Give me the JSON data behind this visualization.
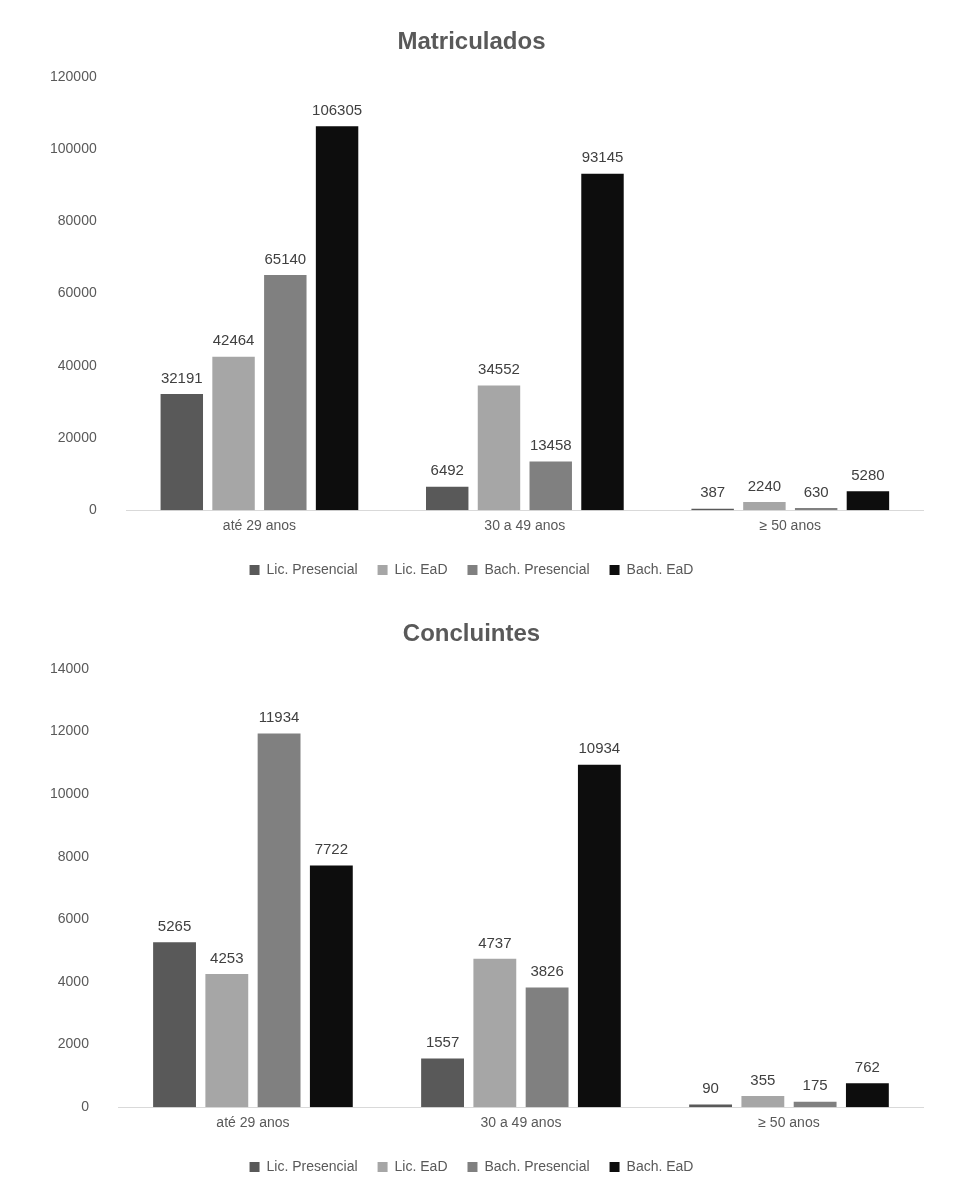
{
  "chart_data": [
    {
      "type": "bar",
      "title": "Matriculados",
      "categories": [
        "até 29 anos",
        "30 a 49 anos",
        "≥ 50 anos"
      ],
      "series": [
        {
          "name": "Lic. Presencial",
          "color": "#595959",
          "values": [
            32191,
            6492,
            387
          ]
        },
        {
          "name": "Lic. EaD",
          "color": "#a6a6a6",
          "values": [
            42464,
            34552,
            2240
          ]
        },
        {
          "name": "Bach. Presencial",
          "color": "#808080",
          "values": [
            65140,
            13458,
            630
          ]
        },
        {
          "name": "Bach. EaD",
          "color": "#0d0d0d",
          "values": [
            106305,
            93145,
            5280
          ]
        }
      ],
      "ylim": [
        0,
        120000
      ],
      "yticks": [
        0,
        20000,
        40000,
        60000,
        80000,
        100000,
        120000
      ],
      "grid": false,
      "legend": "bottom",
      "data_labels": true
    },
    {
      "type": "bar",
      "title": "Concluintes",
      "categories": [
        "até 29 anos",
        "30 a 49 anos",
        "≥ 50 anos"
      ],
      "series": [
        {
          "name": "Lic. Presencial",
          "color": "#595959",
          "values": [
            5265,
            1557,
            90
          ]
        },
        {
          "name": "Lic. EaD",
          "color": "#a6a6a6",
          "values": [
            4253,
            4737,
            355
          ]
        },
        {
          "name": "Bach. Presencial",
          "color": "#808080",
          "values": [
            11934,
            3826,
            175
          ]
        },
        {
          "name": "Bach. EaD",
          "color": "#0d0d0d",
          "values": [
            7722,
            10934,
            762
          ]
        }
      ],
      "ylim": [
        0,
        14000
      ],
      "yticks": [
        0,
        2000,
        4000,
        6000,
        8000,
        10000,
        12000,
        14000
      ],
      "grid": false,
      "legend": "bottom",
      "data_labels": true
    }
  ]
}
